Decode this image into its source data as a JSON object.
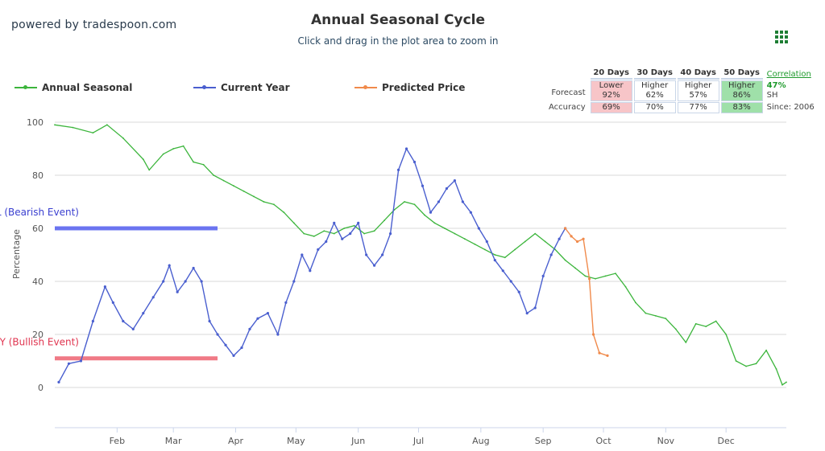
{
  "brand": "powered by tradespoon.com",
  "menu_icon": "grid-menu-icon",
  "chart_data": {
    "type": "line",
    "title": "Annual Seasonal Cycle",
    "subtitle": "Click and drag in the plot area to zoom in",
    "ylabel": "Percentage",
    "ylim": [
      -15,
      100
    ],
    "yticks": [
      0,
      20,
      40,
      60,
      80,
      100
    ],
    "x_axis": "day of year",
    "xlim": [
      1,
      365
    ],
    "x_tick_labels": [
      {
        "label": "Feb",
        "day": 32
      },
      {
        "label": "Mar",
        "day": 60
      },
      {
        "label": "Apr",
        "day": 91
      },
      {
        "label": "May",
        "day": 121
      },
      {
        "label": "Jun",
        "day": 152
      },
      {
        "label": "Jul",
        "day": 182
      },
      {
        "label": "Aug",
        "day": 213
      },
      {
        "label": "Sep",
        "day": 244
      },
      {
        "label": "Oct",
        "day": 274
      },
      {
        "label": "Nov",
        "day": 305
      },
      {
        "label": "Dec",
        "day": 335
      }
    ],
    "grid": true,
    "legend_position": "top-left",
    "series": [
      {
        "name": "Annual Seasonal",
        "color": "#3cb53c",
        "points": [
          [
            1,
            99
          ],
          [
            10,
            98
          ],
          [
            20,
            96
          ],
          [
            27,
            99
          ],
          [
            35,
            94
          ],
          [
            45,
            86
          ],
          [
            48,
            82
          ],
          [
            55,
            88
          ],
          [
            60,
            90
          ],
          [
            65,
            91
          ],
          [
            70,
            85
          ],
          [
            75,
            84
          ],
          [
            80,
            80
          ],
          [
            85,
            78
          ],
          [
            90,
            76
          ],
          [
            95,
            74
          ],
          [
            100,
            72
          ],
          [
            105,
            70
          ],
          [
            110,
            69
          ],
          [
            115,
            66
          ],
          [
            120,
            62
          ],
          [
            125,
            58
          ],
          [
            130,
            57
          ],
          [
            135,
            59
          ],
          [
            140,
            58
          ],
          [
            145,
            60
          ],
          [
            150,
            61
          ],
          [
            155,
            58
          ],
          [
            160,
            59
          ],
          [
            165,
            63
          ],
          [
            170,
            67
          ],
          [
            175,
            70
          ],
          [
            180,
            69
          ],
          [
            185,
            65
          ],
          [
            190,
            62
          ],
          [
            195,
            60
          ],
          [
            200,
            58
          ],
          [
            205,
            56
          ],
          [
            210,
            54
          ],
          [
            215,
            52
          ],
          [
            220,
            50
          ],
          [
            225,
            49
          ],
          [
            230,
            52
          ],
          [
            235,
            55
          ],
          [
            240,
            58
          ],
          [
            245,
            55
          ],
          [
            250,
            52
          ],
          [
            255,
            48
          ],
          [
            260,
            45
          ],
          [
            265,
            42
          ],
          [
            270,
            41
          ],
          [
            275,
            42
          ],
          [
            280,
            43
          ],
          [
            285,
            38
          ],
          [
            290,
            32
          ],
          [
            295,
            28
          ],
          [
            300,
            27
          ],
          [
            305,
            26
          ],
          [
            310,
            22
          ],
          [
            315,
            17
          ],
          [
            320,
            24
          ],
          [
            325,
            23
          ],
          [
            330,
            25
          ],
          [
            335,
            20
          ],
          [
            340,
            10
          ],
          [
            345,
            8
          ],
          [
            350,
            9
          ],
          [
            355,
            14
          ],
          [
            360,
            7
          ],
          [
            363,
            1
          ],
          [
            365,
            2
          ]
        ]
      },
      {
        "name": "Current Year",
        "color": "#4a5fcf",
        "points": [
          [
            3,
            2
          ],
          [
            8,
            9
          ],
          [
            14,
            10
          ],
          [
            20,
            25
          ],
          [
            26,
            38
          ],
          [
            30,
            32
          ],
          [
            35,
            25
          ],
          [
            40,
            22
          ],
          [
            45,
            28
          ],
          [
            50,
            34
          ],
          [
            55,
            40
          ],
          [
            58,
            46
          ],
          [
            62,
            36
          ],
          [
            66,
            40
          ],
          [
            70,
            45
          ],
          [
            74,
            40
          ],
          [
            78,
            25
          ],
          [
            82,
            20
          ],
          [
            86,
            16
          ],
          [
            90,
            12
          ],
          [
            94,
            15
          ],
          [
            98,
            22
          ],
          [
            102,
            26
          ],
          [
            107,
            28
          ],
          [
            112,
            20
          ],
          [
            116,
            32
          ],
          [
            120,
            40
          ],
          [
            124,
            50
          ],
          [
            128,
            44
          ],
          [
            132,
            52
          ],
          [
            136,
            55
          ],
          [
            140,
            62
          ],
          [
            144,
            56
          ],
          [
            148,
            58
          ],
          [
            152,
            62
          ],
          [
            156,
            50
          ],
          [
            160,
            46
          ],
          [
            164,
            50
          ],
          [
            168,
            58
          ],
          [
            172,
            82
          ],
          [
            176,
            90
          ],
          [
            180,
            85
          ],
          [
            184,
            76
          ],
          [
            188,
            66
          ],
          [
            192,
            70
          ],
          [
            196,
            75
          ],
          [
            200,
            78
          ],
          [
            204,
            70
          ],
          [
            208,
            66
          ],
          [
            212,
            60
          ],
          [
            216,
            55
          ],
          [
            220,
            48
          ],
          [
            224,
            44
          ],
          [
            228,
            40
          ],
          [
            232,
            36
          ],
          [
            236,
            28
          ],
          [
            240,
            30
          ],
          [
            244,
            42
          ],
          [
            248,
            50
          ],
          [
            252,
            56
          ],
          [
            255,
            60
          ]
        ]
      },
      {
        "name": "Predicted Price",
        "color": "#f08a4b",
        "points": [
          [
            255,
            60
          ],
          [
            258,
            57
          ],
          [
            261,
            55
          ],
          [
            264,
            56
          ],
          [
            267,
            41
          ],
          [
            269,
            20
          ],
          [
            272,
            13
          ],
          [
            276,
            12
          ]
        ]
      }
    ],
    "bands": [
      {
        "label": "SELL (Bearish Event)",
        "value": 60,
        "color": "#6b74f0"
      },
      {
        "label": "BUY (Bullish Event)",
        "value": 11,
        "color": "#f07a86"
      }
    ]
  },
  "forecast_table": {
    "headers": [
      "20 Days",
      "30 Days",
      "40 Days",
      "50 Days"
    ],
    "rows": [
      {
        "label": "Forecast",
        "cells": [
          {
            "top": "Lower",
            "bottom": "92%",
            "tone": "red"
          },
          {
            "top": "Higher",
            "bottom": "62%",
            "tone": "none"
          },
          {
            "top": "Higher",
            "bottom": "57%",
            "tone": "none"
          },
          {
            "top": "Higher",
            "bottom": "86%",
            "tone": "green"
          }
        ]
      },
      {
        "label": "Accuracy",
        "cells": [
          {
            "top": "69%",
            "tone": "red"
          },
          {
            "top": "70%",
            "tone": "none"
          },
          {
            "top": "77%",
            "tone": "none"
          },
          {
            "top": "83%",
            "tone": "green"
          }
        ]
      }
    ],
    "correlation_label": "Correlation",
    "correlation_value": "47%",
    "symbol": "SH",
    "since": "Since: 2006"
  }
}
